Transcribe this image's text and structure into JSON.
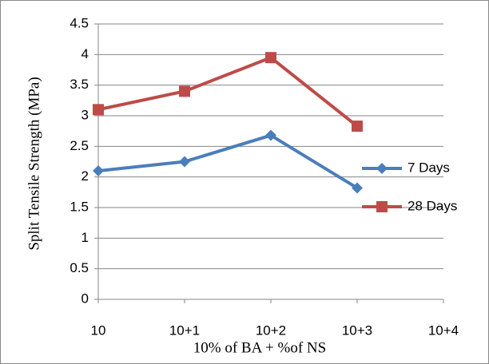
{
  "chart_data": {
    "type": "line",
    "x_label": "10% of BA + %of NS",
    "y_label": "Split Tensile Strength (MPa)",
    "categories": [
      "10",
      "10+1",
      "10+2",
      "10+3",
      "10+4"
    ],
    "series": [
      {
        "name": "7 Days",
        "color": "#4a7ebb",
        "marker": "diamond",
        "values": [
          2.1,
          2.25,
          2.68,
          1.82,
          null
        ]
      },
      {
        "name": "28 Days",
        "color": "#be4b48",
        "marker": "square",
        "values": [
          3.1,
          3.4,
          3.95,
          2.83,
          null
        ]
      }
    ],
    "ylim": [
      0,
      4.5
    ],
    "yticks": [
      0,
      0.5,
      1,
      1.5,
      2,
      2.5,
      3,
      3.5,
      4,
      4.5
    ],
    "grid": true,
    "legend": "right"
  }
}
